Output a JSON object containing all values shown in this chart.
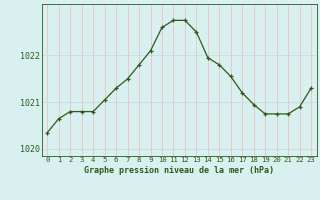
{
  "x": [
    0,
    1,
    2,
    3,
    4,
    5,
    6,
    7,
    8,
    9,
    10,
    11,
    12,
    13,
    14,
    15,
    16,
    17,
    18,
    19,
    20,
    21,
    22,
    23
  ],
  "y": [
    1020.35,
    1020.65,
    1020.8,
    1020.8,
    1020.8,
    1021.05,
    1021.3,
    1021.5,
    1021.8,
    1022.1,
    1022.6,
    1022.75,
    1022.75,
    1022.5,
    1021.95,
    1021.8,
    1021.55,
    1021.2,
    1020.95,
    1020.75,
    1020.75,
    1020.75,
    1020.9,
    1021.3
  ],
  "line_color": "#2d5a1b",
  "marker": "+",
  "bg_color": "#d8f0f0",
  "grid_color_v": "#f0c0c0",
  "grid_color_h": "#c8dede",
  "xlabel": "Graphe pression niveau de la mer (hPa)",
  "xlabel_color": "#2d5a1b",
  "tick_color": "#2d5a1b",
  "ylim": [
    1019.85,
    1023.1
  ],
  "yticks": [
    1020,
    1021,
    1022
  ],
  "xticks": [
    0,
    1,
    2,
    3,
    4,
    5,
    6,
    7,
    8,
    9,
    10,
    11,
    12,
    13,
    14,
    15,
    16,
    17,
    18,
    19,
    20,
    21,
    22,
    23
  ]
}
